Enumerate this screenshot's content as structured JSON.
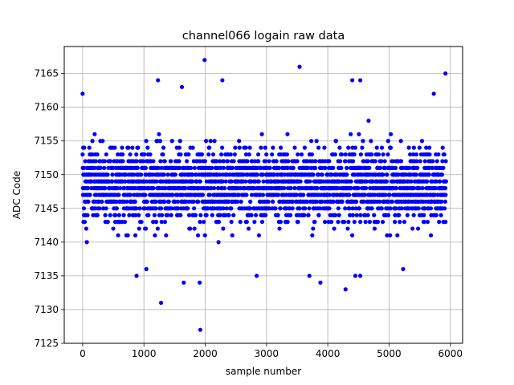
{
  "chart_data": {
    "type": "scatter",
    "title": "channel066 logain raw data",
    "xlabel": "sample number",
    "ylabel": "ADC Code",
    "xlim": [
      -300,
      6200
    ],
    "ylim": [
      7125,
      7169
    ],
    "xticks": [
      0,
      1000,
      2000,
      3000,
      4000,
      5000,
      6000
    ],
    "yticks": [
      7125,
      7130,
      7135,
      7140,
      7145,
      7150,
      7155,
      7160,
      7165
    ],
    "xtick_labels": [
      "0",
      "1000",
      "2000",
      "3000",
      "4000",
      "5000",
      "6000"
    ],
    "ytick_labels": [
      "7125",
      "7130",
      "7135",
      "7140",
      "7145",
      "7150",
      "7155",
      "7160",
      "7165"
    ],
    "grid": true,
    "marker_color": "#0000ff",
    "series": [
      {
        "x_range": [
          0,
          5930
        ],
        "y_core_range": [
          7141,
          7156
        ],
        "outliers": [
          {
            "x": 0,
            "y": 7162
          },
          {
            "x": 1230,
            "y": 7164
          },
          {
            "x": 1620,
            "y": 7163
          },
          {
            "x": 1990,
            "y": 7167
          },
          {
            "x": 2280,
            "y": 7164
          },
          {
            "x": 3540,
            "y": 7166
          },
          {
            "x": 4400,
            "y": 7164
          },
          {
            "x": 4530,
            "y": 7164
          },
          {
            "x": 5730,
            "y": 7162
          },
          {
            "x": 5920,
            "y": 7165
          },
          {
            "x": 1280,
            "y": 7131
          },
          {
            "x": 1920,
            "y": 7127
          },
          {
            "x": 1650,
            "y": 7134
          },
          {
            "x": 1910,
            "y": 7134
          },
          {
            "x": 3880,
            "y": 7134
          },
          {
            "x": 4290,
            "y": 7133
          },
          {
            "x": 880,
            "y": 7135
          },
          {
            "x": 2840,
            "y": 7135
          },
          {
            "x": 3700,
            "y": 7135
          },
          {
            "x": 4530,
            "y": 7135
          },
          {
            "x": 4450,
            "y": 7135
          },
          {
            "x": 1040,
            "y": 7136
          },
          {
            "x": 5230,
            "y": 7136
          }
        ]
      }
    ]
  }
}
